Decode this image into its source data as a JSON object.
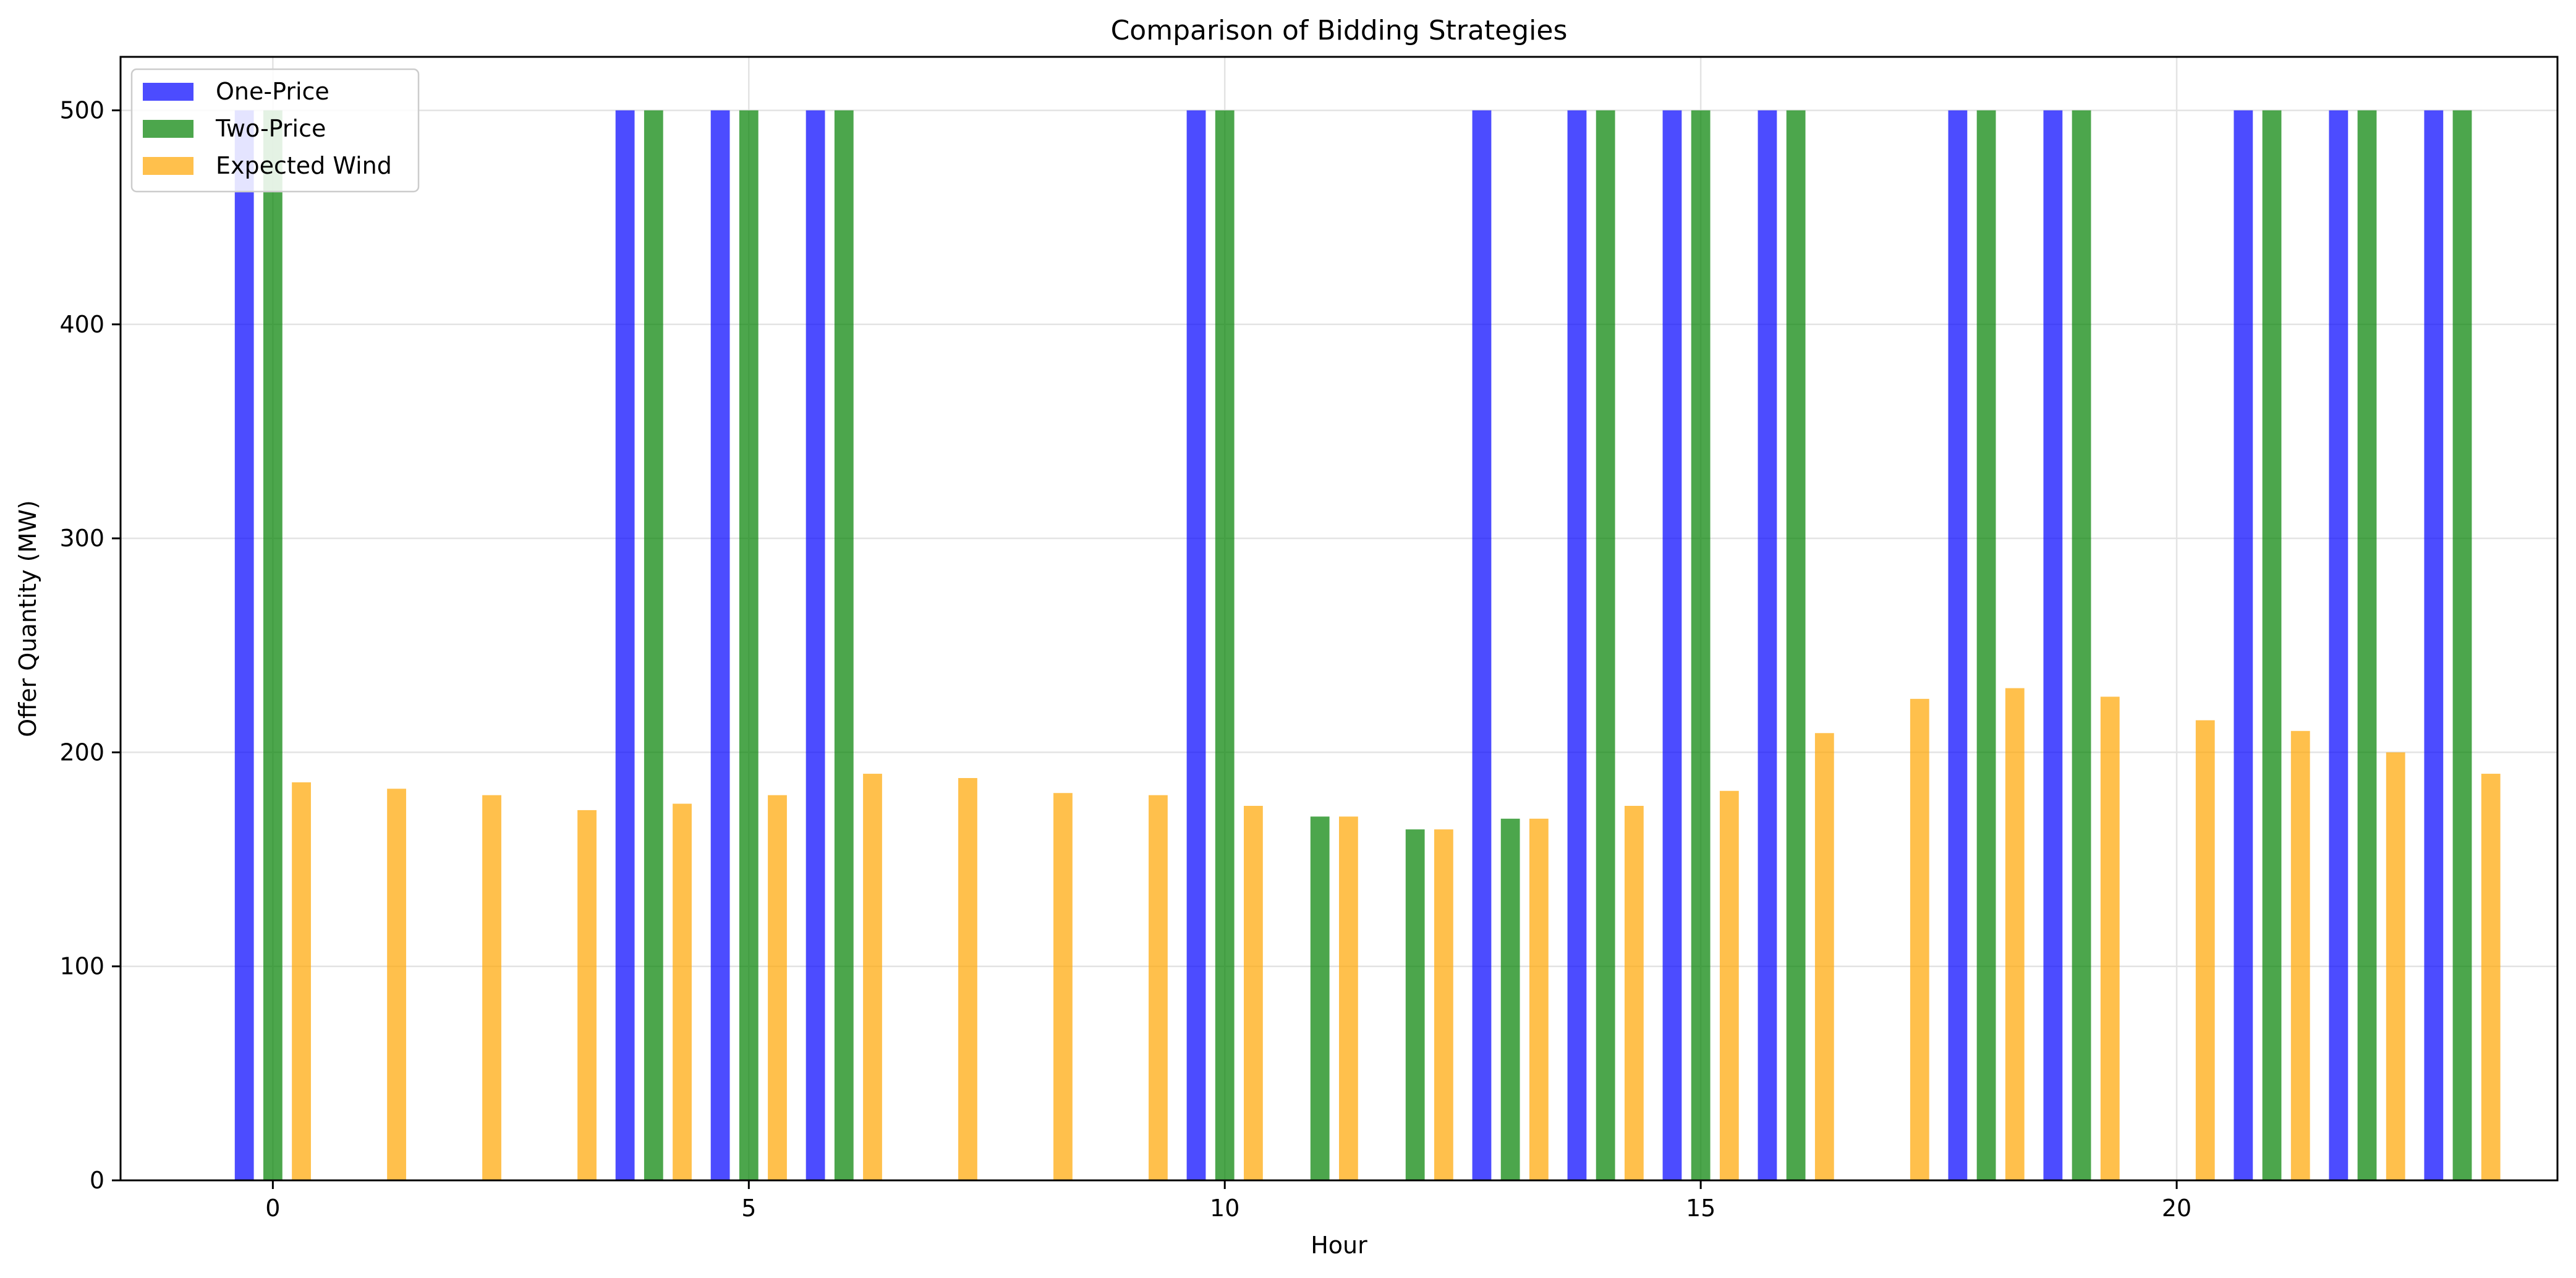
{
  "chart_data": {
    "type": "bar",
    "title": "Comparison of Bidding Strategies",
    "xlabel": "Hour",
    "ylabel": "Offer Quantity (MW)",
    "xlim": [
      -1.6,
      24.0
    ],
    "ylim": [
      0,
      525
    ],
    "x_ticks": [
      0,
      5,
      10,
      15,
      20
    ],
    "y_ticks": [
      0,
      100,
      200,
      300,
      400,
      500
    ],
    "grid": true,
    "legend_position": "top-left",
    "x": [
      0,
      1,
      2,
      3,
      4,
      5,
      6,
      7,
      8,
      9,
      10,
      11,
      12,
      13,
      14,
      15,
      16,
      17,
      18,
      19,
      20,
      21,
      22,
      23
    ],
    "series": [
      {
        "name": "One-Price",
        "color": "#0000ff",
        "values": [
          500,
          0,
          0,
          0,
          500,
          500,
          500,
          0,
          0,
          0,
          500,
          0,
          0,
          500,
          500,
          500,
          500,
          0,
          500,
          500,
          0,
          500,
          500,
          500
        ]
      },
      {
        "name": "Two-Price",
        "color": "#008000",
        "values": [
          500,
          0,
          0,
          0,
          500,
          500,
          500,
          0,
          0,
          0,
          500,
          170,
          164,
          169,
          500,
          500,
          500,
          0,
          500,
          500,
          0,
          500,
          500,
          500
        ]
      },
      {
        "name": "Expected Wind",
        "color": "#ffa500",
        "values": [
          186,
          183,
          180,
          173,
          176,
          180,
          190,
          188,
          181,
          180,
          175,
          170,
          164,
          169,
          175,
          182,
          209,
          225,
          230,
          226,
          215,
          210,
          200,
          190
        ]
      }
    ]
  }
}
